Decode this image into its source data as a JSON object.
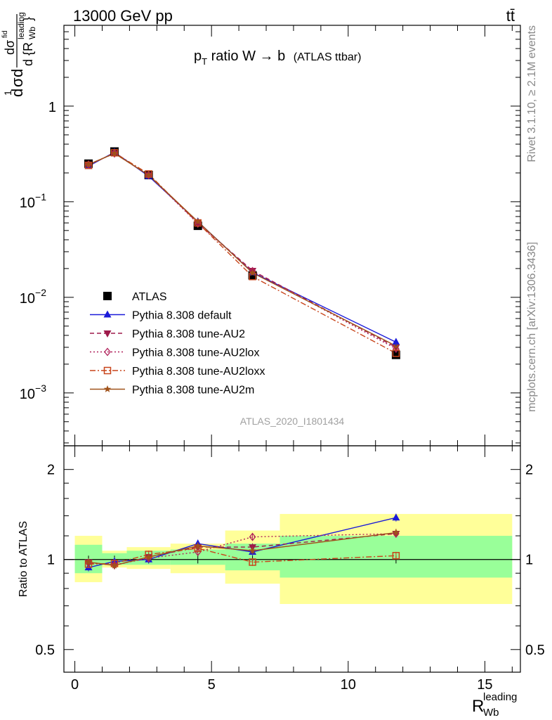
{
  "header": {
    "left": "13000 GeV pp",
    "right": "tt̄"
  },
  "side_text": {
    "rivet": "Rivet 3.1.10, ≥ 2.1M events",
    "mcplots": "mcplots.cern.ch [arXiv:1306.3436]"
  },
  "watermark": "ATLAS_2020_I1801434",
  "chart_data": [
    {
      "type": "line",
      "title": {
        "main": "p",
        "sub": "T",
        "rest": " ratio W → b",
        "small": "(ATLAS ttbar)"
      },
      "ylabel": "1/σ dσ^fid / d{R_Wb^leading}",
      "xlabel": "R_Wb^leading",
      "yscale": "log",
      "ylim": [
        0.00028,
        7
      ],
      "xlim": [
        -0.4,
        16.3
      ],
      "yticks": [
        {
          "v": 0.001,
          "base": "10",
          "exp": "−3"
        },
        {
          "v": 0.01,
          "base": "10",
          "exp": "−2"
        },
        {
          "v": 0.1,
          "base": "10",
          "exp": "−1"
        },
        {
          "v": 1,
          "base": "1",
          "exp": ""
        }
      ],
      "x": [
        0.5,
        1.45,
        2.7,
        4.5,
        6.5,
        11.75
      ],
      "series": [
        {
          "name": "ATLAS",
          "color": "#000000",
          "marker": "square-filled",
          "dash": "none",
          "values": [
            0.25,
            0.335,
            0.19,
            0.056,
            0.017,
            0.0025
          ]
        },
        {
          "name": "Pythia 8.308 default",
          "color": "#1a1ad9",
          "marker": "triangle-up",
          "dash": "solid",
          "values": [
            0.235,
            0.33,
            0.185,
            0.062,
            0.0182,
            0.0034
          ]
        },
        {
          "name": "Pythia 8.308 tune-AU2",
          "color": "#9e1a4a",
          "marker": "triangle-down",
          "dash": "6,4",
          "values": [
            0.245,
            0.32,
            0.19,
            0.06,
            0.019,
            0.003
          ]
        },
        {
          "name": "Pythia 8.308 tune-AU2lox",
          "color": "#b0205a",
          "marker": "diamond-open",
          "dash": "2,3",
          "values": [
            0.245,
            0.32,
            0.19,
            0.059,
            0.0188,
            0.0029
          ]
        },
        {
          "name": "Pythia 8.308 tune-AU2loxx",
          "color": "#c8441a",
          "marker": "square-open",
          "dash": "8,3,2,3",
          "values": [
            0.24,
            0.325,
            0.195,
            0.06,
            0.0165,
            0.0026
          ]
        },
        {
          "name": "Pythia 8.308 tune-AU2m",
          "color": "#a0521a",
          "marker": "star",
          "dash": "solid",
          "values": [
            0.245,
            0.32,
            0.19,
            0.062,
            0.018,
            0.0031
          ]
        }
      ]
    },
    {
      "type": "line",
      "ylabel": "Ratio to ATLAS",
      "yscale": "log",
      "ylim": [
        0.42,
        2.4
      ],
      "yticks": [
        {
          "v": 0.5,
          "label": "0.5"
        },
        {
          "v": 1,
          "label": "1"
        },
        {
          "v": 2,
          "label": "2"
        }
      ],
      "xticks": [
        0,
        5,
        10,
        15
      ],
      "bands": [
        {
          "x0": 0,
          "x1": 1,
          "inner": [
            0.9,
            1.12
          ],
          "outer": [
            0.84,
            1.2
          ]
        },
        {
          "x0": 1,
          "x1": 1.9,
          "inner": [
            0.96,
            1.05
          ],
          "outer": [
            0.94,
            1.07
          ]
        },
        {
          "x0": 1.9,
          "x1": 3.5,
          "inner": [
            0.96,
            1.07
          ],
          "outer": [
            0.93,
            1.1
          ]
        },
        {
          "x0": 3.5,
          "x1": 5.5,
          "inner": [
            0.96,
            1.08
          ],
          "outer": [
            0.9,
            1.13
          ]
        },
        {
          "x0": 5.5,
          "x1": 7.5,
          "inner": [
            0.92,
            1.13
          ],
          "outer": [
            0.83,
            1.25
          ]
        },
        {
          "x0": 7.5,
          "x1": 16,
          "inner": [
            0.87,
            1.2
          ],
          "outer": [
            0.71,
            1.42
          ]
        }
      ],
      "series": [
        {
          "name": "Pythia 8.308 default",
          "values": [
            0.94,
            0.985,
            1.0,
            1.13,
            1.06,
            1.38
          ]
        },
        {
          "name": "Pythia 8.308 tune-AU2",
          "values": [
            0.98,
            0.955,
            1.02,
            1.1,
            1.1,
            1.22
          ]
        },
        {
          "name": "Pythia 8.308 tune-AU2lox",
          "values": [
            0.975,
            0.96,
            1.01,
            1.06,
            1.19,
            1.22
          ]
        },
        {
          "name": "Pythia 8.308 tune-AU2loxx",
          "values": [
            0.965,
            0.97,
            1.04,
            1.09,
            0.98,
            1.03
          ]
        },
        {
          "name": "Pythia 8.308 tune-AU2m",
          "values": [
            0.98,
            0.955,
            1.02,
            1.11,
            1.07,
            1.23
          ]
        }
      ]
    }
  ]
}
